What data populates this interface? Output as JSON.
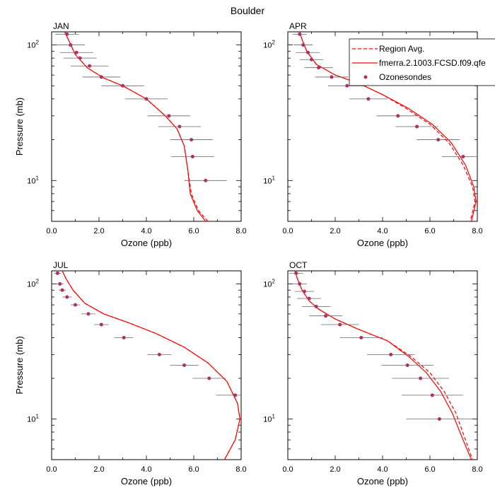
{
  "title": "Boulder",
  "legend": {
    "items": [
      {
        "label": "Region Avg.",
        "style": "dashed"
      },
      {
        "label": "fmerra.2.1003.FCSD.f09.qfe",
        "style": "solid"
      },
      {
        "label": "Ozonesondes",
        "style": "marker"
      }
    ]
  },
  "colors": {
    "model_line": "#ff0000",
    "marker": "#b03060",
    "errorbar": "#666666"
  },
  "chart_data": [
    {
      "type": "line",
      "panel": "JAN",
      "xlabel": "Ozone (ppb)",
      "ylabel": "Pressure (mb)",
      "xlim": [
        0,
        8
      ],
      "ylim": [
        125,
        5
      ],
      "yscale": "log",
      "x_ticks": [
        "0.0",
        "2.0",
        "4.0",
        "6.0",
        "8.0"
      ],
      "y_ticks": [
        "10^1",
        "10^2"
      ],
      "series": [
        {
          "name": "Region Avg.",
          "style": "dashed",
          "points": [
            [
              0.55,
              125
            ],
            [
              0.7,
              110
            ],
            [
              1.0,
              85
            ],
            [
              1.5,
              68
            ],
            [
              2.2,
              57
            ],
            [
              3.0,
              50
            ],
            [
              4.0,
              40
            ],
            [
              4.8,
              30
            ],
            [
              5.3,
              24
            ],
            [
              5.6,
              18
            ],
            [
              5.75,
              12
            ],
            [
              5.9,
              8
            ],
            [
              6.2,
              6
            ],
            [
              6.6,
              5
            ]
          ]
        },
        {
          "name": "fmerra.2.1003.FCSD.f09.qfe",
          "style": "solid",
          "points": [
            [
              0.55,
              125
            ],
            [
              0.7,
              110
            ],
            [
              1.0,
              85
            ],
            [
              1.5,
              68
            ],
            [
              2.2,
              57
            ],
            [
              3.0,
              50
            ],
            [
              4.0,
              40
            ],
            [
              4.8,
              30
            ],
            [
              5.3,
              24
            ],
            [
              5.6,
              18
            ],
            [
              5.75,
              12
            ],
            [
              5.85,
              8
            ],
            [
              6.15,
              6
            ],
            [
              6.5,
              5
            ]
          ]
        },
        {
          "name": "Ozonesondes",
          "style": "marker",
          "points": [
            [
              0.65,
              120,
              0.5
            ],
            [
              0.8,
              100,
              0.6
            ],
            [
              1.05,
              88,
              0.7
            ],
            [
              1.2,
              80,
              0.7
            ],
            [
              1.6,
              70,
              0.8
            ],
            [
              2.1,
              58,
              0.8
            ],
            [
              3.0,
              50,
              0.9
            ],
            [
              4.0,
              40,
              0.9
            ],
            [
              4.95,
              30,
              0.9
            ],
            [
              5.4,
              25,
              0.9
            ],
            [
              5.9,
              20,
              0.9
            ],
            [
              5.95,
              15,
              0.9
            ],
            [
              6.5,
              10,
              0.9
            ]
          ]
        }
      ]
    },
    {
      "type": "line",
      "panel": "APR",
      "xlabel": "Ozone (ppb)",
      "ylabel": "",
      "xlim": [
        0,
        8
      ],
      "ylim": [
        125,
        5
      ],
      "yscale": "log",
      "x_ticks": [
        "0.0",
        "2.0",
        "4.0",
        "6.0",
        "8.0"
      ],
      "y_ticks": [
        "10^1",
        "10^2"
      ],
      "series": [
        {
          "name": "Region Avg.",
          "style": "dashed",
          "points": [
            [
              0.5,
              125
            ],
            [
              0.6,
              110
            ],
            [
              0.8,
              90
            ],
            [
              1.2,
              72
            ],
            [
              2.0,
              60
            ],
            [
              3.0,
              52
            ],
            [
              4.0,
              43
            ],
            [
              5.0,
              34
            ],
            [
              6.0,
              26
            ],
            [
              6.8,
              19
            ],
            [
              7.4,
              13
            ],
            [
              7.8,
              9
            ],
            [
              7.9,
              7
            ],
            [
              7.7,
              5
            ]
          ]
        },
        {
          "name": "fmerra.2.1003.FCSD.f09.qfe",
          "style": "solid",
          "points": [
            [
              0.5,
              125
            ],
            [
              0.6,
              110
            ],
            [
              0.8,
              90
            ],
            [
              1.2,
              72
            ],
            [
              2.0,
              60
            ],
            [
              3.0,
              52
            ],
            [
              4.0,
              43
            ],
            [
              5.1,
              34
            ],
            [
              6.1,
              26
            ],
            [
              6.9,
              19
            ],
            [
              7.5,
              13
            ],
            [
              7.85,
              9
            ],
            [
              7.95,
              7
            ],
            [
              7.75,
              5
            ]
          ]
        },
        {
          "name": "Ozonesondes",
          "style": "marker",
          "points": [
            [
              0.5,
              120,
              0.3
            ],
            [
              0.65,
              100,
              0.4
            ],
            [
              0.85,
              88,
              0.5
            ],
            [
              1.0,
              78,
              0.5
            ],
            [
              1.3,
              68,
              0.6
            ],
            [
              1.85,
              58,
              0.7
            ],
            [
              2.5,
              50,
              0.8
            ],
            [
              3.4,
              40,
              0.8
            ],
            [
              4.65,
              30,
              0.9
            ],
            [
              5.45,
              25,
              0.9
            ],
            [
              6.35,
              20,
              0.9
            ],
            [
              7.4,
              15,
              0.9
            ]
          ]
        }
      ]
    },
    {
      "type": "line",
      "panel": "JUL",
      "xlabel": "Ozone (ppb)",
      "ylabel": "Pressure (mb)",
      "xlim": [
        0,
        8
      ],
      "ylim": [
        125,
        5
      ],
      "yscale": "log",
      "x_ticks": [
        "0.0",
        "2.0",
        "4.0",
        "6.0",
        "8.0"
      ],
      "y_ticks": [
        "10^1",
        "10^2"
      ],
      "series": [
        {
          "name": "Region Avg.",
          "style": "dashed",
          "points": [
            [
              0.45,
              125
            ],
            [
              0.6,
              110
            ],
            [
              0.9,
              90
            ],
            [
              1.4,
              72
            ],
            [
              2.2,
              60
            ],
            [
              3.2,
              52
            ],
            [
              4.4,
              43
            ],
            [
              5.6,
              34
            ],
            [
              6.6,
              26
            ],
            [
              7.4,
              19
            ],
            [
              7.85,
              13
            ],
            [
              7.95,
              10
            ],
            [
              7.75,
              7
            ],
            [
              7.3,
              5
            ]
          ]
        },
        {
          "name": "fmerra.2.1003.FCSD.f09.qfe",
          "style": "solid",
          "points": [
            [
              0.45,
              125
            ],
            [
              0.6,
              110
            ],
            [
              0.9,
              90
            ],
            [
              1.4,
              72
            ],
            [
              2.2,
              60
            ],
            [
              3.2,
              52
            ],
            [
              4.4,
              43
            ],
            [
              5.6,
              34
            ],
            [
              6.6,
              26
            ],
            [
              7.4,
              19
            ],
            [
              7.85,
              13
            ],
            [
              7.95,
              10
            ],
            [
              7.75,
              7
            ],
            [
              7.3,
              5
            ]
          ]
        },
        {
          "name": "Ozonesondes",
          "style": "marker",
          "points": [
            [
              0.25,
              120,
              0.15
            ],
            [
              0.35,
              100,
              0.15
            ],
            [
              0.45,
              90,
              0.15
            ],
            [
              0.65,
              80,
              0.2
            ],
            [
              1.0,
              70,
              0.2
            ],
            [
              1.55,
              60,
              0.3
            ],
            [
              2.1,
              50,
              0.3
            ],
            [
              3.05,
              40,
              0.4
            ],
            [
              4.55,
              30,
              0.5
            ],
            [
              5.6,
              25,
              0.6
            ],
            [
              6.65,
              20,
              0.7
            ],
            [
              7.75,
              15,
              0.8
            ]
          ]
        }
      ]
    },
    {
      "type": "line",
      "panel": "OCT",
      "xlabel": "Ozone (ppb)",
      "ylabel": "",
      "xlim": [
        0,
        8
      ],
      "ylim": [
        125,
        5
      ],
      "yscale": "log",
      "x_ticks": [
        "0.0",
        "2.0",
        "4.0",
        "6.0",
        "8.0"
      ],
      "y_ticks": [
        "10^1",
        "10^2"
      ],
      "series": [
        {
          "name": "Region Avg.",
          "style": "dashed",
          "points": [
            [
              0.3,
              125
            ],
            [
              0.4,
              110
            ],
            [
              0.6,
              90
            ],
            [
              0.9,
              75
            ],
            [
              1.3,
              65
            ],
            [
              2.0,
              55
            ],
            [
              3.0,
              46
            ],
            [
              4.2,
              38
            ],
            [
              5.2,
              29
            ],
            [
              6.0,
              22
            ],
            [
              6.6,
              16
            ],
            [
              7.1,
              11
            ],
            [
              7.5,
              7
            ],
            [
              7.8,
              5
            ]
          ]
        },
        {
          "name": "fmerra.2.1003.FCSD.f09.qfe",
          "style": "solid",
          "points": [
            [
              0.3,
              125
            ],
            [
              0.4,
              110
            ],
            [
              0.6,
              90
            ],
            [
              0.9,
              75
            ],
            [
              1.3,
              65
            ],
            [
              2.0,
              55
            ],
            [
              3.0,
              46
            ],
            [
              4.2,
              38
            ],
            [
              5.1,
              29
            ],
            [
              5.85,
              22
            ],
            [
              6.45,
              16
            ],
            [
              6.95,
              11
            ],
            [
              7.4,
              7
            ],
            [
              7.75,
              5
            ]
          ]
        },
        {
          "name": "Ozonesondes",
          "style": "marker",
          "points": [
            [
              0.35,
              120,
              0.3
            ],
            [
              0.5,
              100,
              0.3
            ],
            [
              0.7,
              88,
              0.4
            ],
            [
              0.9,
              78,
              0.5
            ],
            [
              1.2,
              68,
              0.6
            ],
            [
              1.6,
              58,
              0.7
            ],
            [
              2.2,
              50,
              0.8
            ],
            [
              3.1,
              40,
              0.9
            ],
            [
              4.35,
              30,
              1.0
            ],
            [
              5.05,
              25,
              1.1
            ],
            [
              5.6,
              20,
              1.2
            ],
            [
              6.1,
              15,
              1.3
            ],
            [
              6.4,
              10,
              1.4
            ]
          ]
        }
      ]
    }
  ]
}
